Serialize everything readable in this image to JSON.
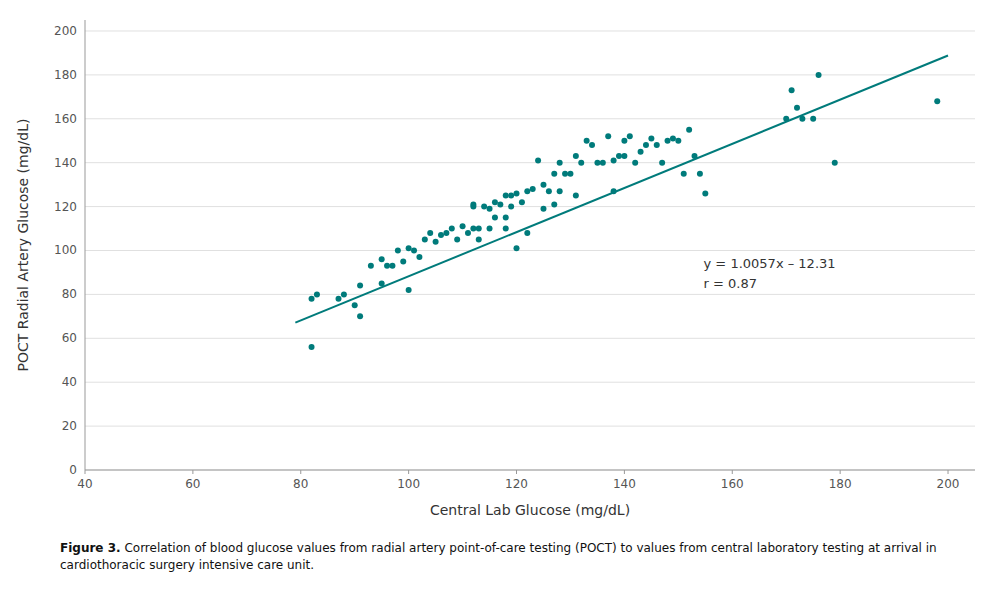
{
  "chart_data": {
    "type": "scatter",
    "xlabel": "Central Lab Glucose (mg/dL)",
    "ylabel": "POCT Radial Artery Glucose (mg/dL)",
    "annotations": [
      "y = 1.0057x – 12.31",
      "r = 0.87"
    ],
    "caption_bold": "Figure 3.",
    "caption": " Correlation of blood glucose values from radial artery point-of-care testing (POCT) to values from central laboratory testing at arrival in cardiothoracic surgery intensive care unit.",
    "series": [
      {
        "type": "scatter",
        "color": "#007B7B",
        "x": [
          82,
          83,
          87,
          88,
          90,
          91,
          93,
          95,
          96,
          97,
          98,
          99,
          100,
          100,
          101,
          102,
          103,
          104,
          105,
          106,
          107,
          108,
          109,
          110,
          111,
          112,
          112,
          113,
          113,
          114,
          115,
          115,
          116,
          116,
          117,
          118,
          118,
          119,
          119,
          120,
          120,
          121,
          122,
          122,
          123,
          124,
          125,
          125,
          126,
          127,
          128,
          128,
          129,
          130,
          131,
          132,
          133,
          134,
          135,
          136,
          137,
          138,
          138,
          139,
          140,
          140,
          141,
          142,
          143,
          144,
          145,
          146,
          147,
          148,
          149,
          150,
          151,
          152,
          153,
          154,
          155,
          170,
          171,
          172,
          173,
          175,
          176,
          198,
          82,
          91,
          95,
          112,
          118,
          127,
          131,
          179
        ],
        "values": [
          78,
          80,
          78,
          80,
          75,
          84,
          93,
          96,
          93,
          93,
          100,
          95,
          101,
          82,
          100,
          97,
          105,
          108,
          104,
          107,
          108,
          110,
          105,
          111,
          108,
          121,
          120,
          105,
          110,
          120,
          119,
          110,
          115,
          122,
          121,
          125,
          115,
          120,
          125,
          126,
          101,
          122,
          108,
          127,
          128,
          141,
          119,
          130,
          127,
          135,
          127,
          140,
          135,
          135,
          143,
          140,
          150,
          148,
          140,
          140,
          152,
          141,
          127,
          143,
          143,
          150,
          152,
          140,
          145,
          148,
          151,
          148,
          140,
          150,
          151,
          150,
          135,
          155,
          143,
          135,
          126,
          160,
          173,
          165,
          160,
          160,
          180,
          168,
          56,
          70,
          85,
          110,
          110,
          121,
          125,
          140
        ]
      },
      {
        "type": "line",
        "color": "#007B7B",
        "x": [
          79,
          200
        ],
        "values": [
          67.1403,
          188.83
        ]
      }
    ],
    "xlim": [
      40,
      205
    ],
    "ylim": [
      0,
      205
    ],
    "xticks": [
      40,
      60,
      80,
      100,
      120,
      140,
      160,
      180,
      200
    ],
    "yticks": [
      0,
      20,
      40,
      60,
      80,
      100,
      120,
      140,
      160,
      180,
      200
    ],
    "grid": "y"
  }
}
